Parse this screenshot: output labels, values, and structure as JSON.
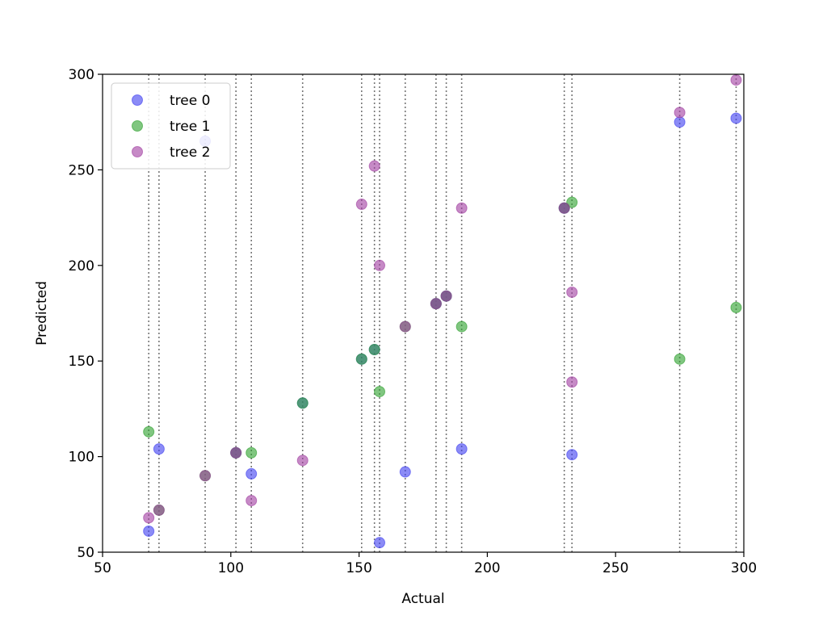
{
  "chart_data": {
    "type": "scatter",
    "xlabel": "Actual",
    "ylabel": "Predicted",
    "xlim": [
      50,
      300
    ],
    "ylim": [
      50,
      300
    ],
    "xticks": [
      50,
      100,
      150,
      200,
      250,
      300
    ],
    "yticks": [
      50,
      100,
      150,
      200,
      250,
      300
    ],
    "grid": false,
    "legend_position": "top-left",
    "vertical_lines": [
      68,
      72,
      90,
      102,
      108,
      128,
      151,
      156,
      158,
      168,
      180,
      184,
      190,
      230,
      233,
      275,
      297
    ],
    "series": [
      {
        "name": "tree 0",
        "color": "#3d3df0",
        "points": [
          [
            68,
            61
          ],
          [
            72,
            104
          ],
          [
            90,
            265
          ],
          [
            102,
            102
          ],
          [
            108,
            91
          ],
          [
            128,
            128
          ],
          [
            151,
            151
          ],
          [
            156,
            156
          ],
          [
            158,
            55
          ],
          [
            168,
            92
          ],
          [
            180,
            180
          ],
          [
            184,
            184
          ],
          [
            190,
            104
          ],
          [
            230,
            230
          ],
          [
            233,
            101
          ],
          [
            275,
            275
          ],
          [
            297,
            277
          ]
        ]
      },
      {
        "name": "tree 1",
        "color": "#2ca02c",
        "points": [
          [
            68,
            113
          ],
          [
            72,
            72
          ],
          [
            90,
            90
          ],
          [
            102,
            102
          ],
          [
            108,
            102
          ],
          [
            128,
            128
          ],
          [
            151,
            151
          ],
          [
            156,
            156
          ],
          [
            158,
            134
          ],
          [
            168,
            168
          ],
          [
            180,
            180
          ],
          [
            184,
            184
          ],
          [
            190,
            168
          ],
          [
            230,
            230
          ],
          [
            233,
            233
          ],
          [
            275,
            151
          ],
          [
            297,
            178
          ]
        ]
      },
      {
        "name": "tree 2",
        "color": "#a03ca0",
        "points": [
          [
            68,
            68
          ],
          [
            72,
            72
          ],
          [
            90,
            90
          ],
          [
            102,
            102
          ],
          [
            108,
            77
          ],
          [
            128,
            98
          ],
          [
            151,
            232
          ],
          [
            156,
            252
          ],
          [
            158,
            200
          ],
          [
            168,
            168
          ],
          [
            180,
            180
          ],
          [
            184,
            184
          ],
          [
            190,
            230
          ],
          [
            230,
            230
          ],
          [
            233,
            139
          ],
          [
            233,
            186
          ],
          [
            275,
            280
          ],
          [
            297,
            297
          ]
        ]
      }
    ]
  }
}
